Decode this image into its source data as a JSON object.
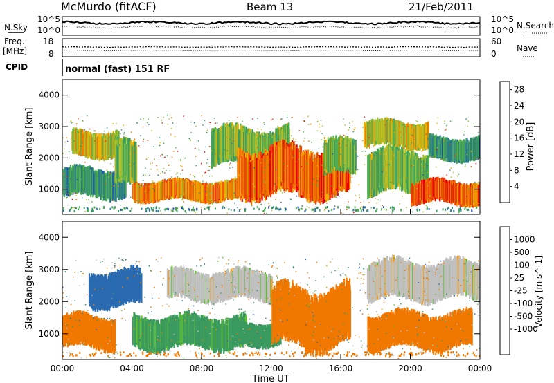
{
  "header": {
    "station": "McMurdo (fitACF)",
    "beam": "Beam 13",
    "date": "21/Feb/2011"
  },
  "noise_panel": {
    "left_label": "N.Sky",
    "right_label": "N.Search",
    "left_ticks": [
      "10^5",
      "10^0"
    ],
    "right_ticks": [
      "10^5",
      "10^0"
    ]
  },
  "freq_panel": {
    "left_label_line1": "Freq.",
    "left_label_line2": "[MHz]",
    "left_ticks": [
      "18",
      "8"
    ],
    "right_label": "Nave",
    "right_ticks": [
      "60",
      "0"
    ]
  },
  "cpid": {
    "label": "CPID",
    "value": "normal (fast) 151 RF"
  },
  "colors": {
    "power_scale": [
      "#1414ff",
      "#2050b0",
      "#2a7a90",
      "#3a9a60",
      "#50b050",
      "#a0c030",
      "#f0b000",
      "#f07800",
      "#f04010",
      "#e80000"
    ],
    "velocity_scale": [
      "#ee0000",
      "#f04010",
      "#f07800",
      "#f0a020",
      "#c0c0c0",
      "#c0c0c0",
      "#60c030",
      "#3a9a60",
      "#2a6ab0",
      "#2040c0"
    ]
  },
  "chart_data": [
    {
      "type": "heatmap",
      "parameter": "Power",
      "ylabel": "Slant Range [km]",
      "yticks": [
        "1000",
        "2000",
        "3000",
        "4000"
      ],
      "ylim": [
        200,
        4500
      ],
      "xlim_hours": [
        0,
        24
      ],
      "colorbar_label": "Power [dB]",
      "colorbar_ticks": [
        "28",
        "24",
        "20",
        "16",
        "12",
        "8",
        "4"
      ],
      "colorbar_range": [
        0,
        30
      ],
      "echo_bands": [
        {
          "t0": 0.0,
          "t1": 3.6,
          "r0": 700,
          "r1": 1700,
          "value": 10
        },
        {
          "t0": 0.5,
          "t1": 3.2,
          "r0": 2000,
          "r1": 2900,
          "value": 18
        },
        {
          "t0": 3.0,
          "t1": 4.2,
          "r0": 1000,
          "r1": 2500,
          "value": 14
        },
        {
          "t0": 4.0,
          "t1": 10.5,
          "r0": 600,
          "r1": 1300,
          "value": 22
        },
        {
          "t0": 8.5,
          "t1": 13.0,
          "r0": 1700,
          "r1": 3000,
          "value": 14
        },
        {
          "t0": 10.0,
          "t1": 16.5,
          "r0": 700,
          "r1": 2400,
          "value": 24
        },
        {
          "t0": 15.0,
          "t1": 16.8,
          "r0": 1400,
          "r1": 2600,
          "value": 14
        },
        {
          "t0": 17.5,
          "t1": 21.0,
          "r0": 800,
          "r1": 2300,
          "value": 14
        },
        {
          "t0": 17.3,
          "t1": 21.0,
          "r0": 2300,
          "r1": 3200,
          "value": 18
        },
        {
          "t0": 20.0,
          "t1": 24.0,
          "r0": 500,
          "r1": 1300,
          "value": 24
        },
        {
          "t0": 21.0,
          "t1": 24.0,
          "r0": 1900,
          "r1": 2700,
          "value": 10
        }
      ]
    },
    {
      "type": "heatmap",
      "parameter": "Velocity",
      "ylabel": "Slant Range [km]",
      "yticks": [
        "1000",
        "2000",
        "3000",
        "4000"
      ],
      "ylim": [
        200,
        4500
      ],
      "xlim_hours": [
        0,
        24
      ],
      "xticks": [
        "00:00",
        "04:00",
        "08:00",
        "12:00",
        "16:00",
        "20:00",
        "00:00"
      ],
      "xlabel": "Time UT",
      "colorbar_label": "Velocity [m s^-1]",
      "colorbar_ticks": [
        "1000",
        "500",
        "100",
        "25",
        "-25",
        "-100",
        "-500",
        "-1000"
      ],
      "echo_bands": [
        {
          "t0": 0.0,
          "t1": 3.0,
          "r0": 500,
          "r1": 1600,
          "value": -300
        },
        {
          "t0": 1.5,
          "t1": 4.5,
          "r0": 1800,
          "r1": 3000,
          "value": 600
        },
        {
          "t0": 4.0,
          "t1": 10.5,
          "r0": 500,
          "r1": 1600,
          "value": 120
        },
        {
          "t0": 6.0,
          "t1": 12.0,
          "r0": 2000,
          "r1": 3000,
          "value": 0
        },
        {
          "t0": 10.0,
          "t1": 12.5,
          "r0": 600,
          "r1": 1400,
          "value": 130
        },
        {
          "t0": 12.0,
          "t1": 16.5,
          "r0": 500,
          "r1": 2500,
          "value": -300
        },
        {
          "t0": 17.5,
          "t1": 23.5,
          "r0": 500,
          "r1": 1700,
          "value": -250
        },
        {
          "t0": 17.5,
          "t1": 24.0,
          "r0": 2000,
          "r1": 3300,
          "value": 0
        }
      ]
    }
  ]
}
